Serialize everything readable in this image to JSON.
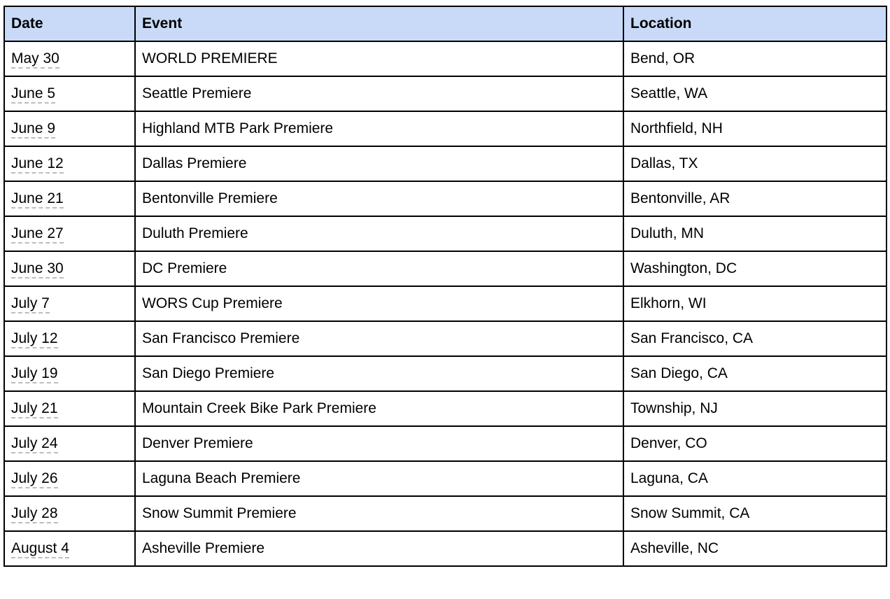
{
  "colors": {
    "header_bg": "#c9daf8",
    "table_border": "#000000",
    "text": "#000000",
    "date_underline": "#bdbdbd",
    "page_bg": "#ffffff"
  },
  "table": {
    "columns": [
      {
        "key": "date",
        "label": "Date"
      },
      {
        "key": "event",
        "label": "Event"
      },
      {
        "key": "location",
        "label": "Location"
      }
    ],
    "rows": [
      {
        "date": "May 30",
        "event": "WORLD PREMIERE",
        "location": "Bend, OR"
      },
      {
        "date": "June 5",
        "event": "Seattle Premiere",
        "location": "Seattle, WA"
      },
      {
        "date": "June 9",
        "event": "Highland MTB Park Premiere",
        "location": "Northfield, NH"
      },
      {
        "date": "June 12",
        "event": "Dallas Premiere",
        "location": "Dallas, TX"
      },
      {
        "date": "June 21",
        "event": "Bentonville Premiere",
        "location": "Bentonville, AR"
      },
      {
        "date": "June 27",
        "event": "Duluth Premiere",
        "location": "Duluth, MN"
      },
      {
        "date": "June 30",
        "event": "DC Premiere",
        "location": "Washington, DC"
      },
      {
        "date": "July 7",
        "event": "WORS Cup Premiere",
        "location": "Elkhorn, WI"
      },
      {
        "date": "July 12",
        "event": "San Francisco Premiere",
        "location": "San Francisco, CA"
      },
      {
        "date": "July 19",
        "event": "San Diego Premiere",
        "location": "San Diego, CA"
      },
      {
        "date": "July 21",
        "event": "Mountain Creek Bike Park Premiere",
        "location": "Township, NJ"
      },
      {
        "date": "July 24",
        "event": "Denver Premiere",
        "location": "Denver, CO"
      },
      {
        "date": "July 26",
        "event": "Laguna Beach Premiere",
        "location": "Laguna, CA"
      },
      {
        "date": "July 28",
        "event": "Snow Summit Premiere",
        "location": "Snow Summit, CA"
      },
      {
        "date": "August 4",
        "event": "Asheville Premiere",
        "location": "Asheville, NC"
      }
    ]
  }
}
